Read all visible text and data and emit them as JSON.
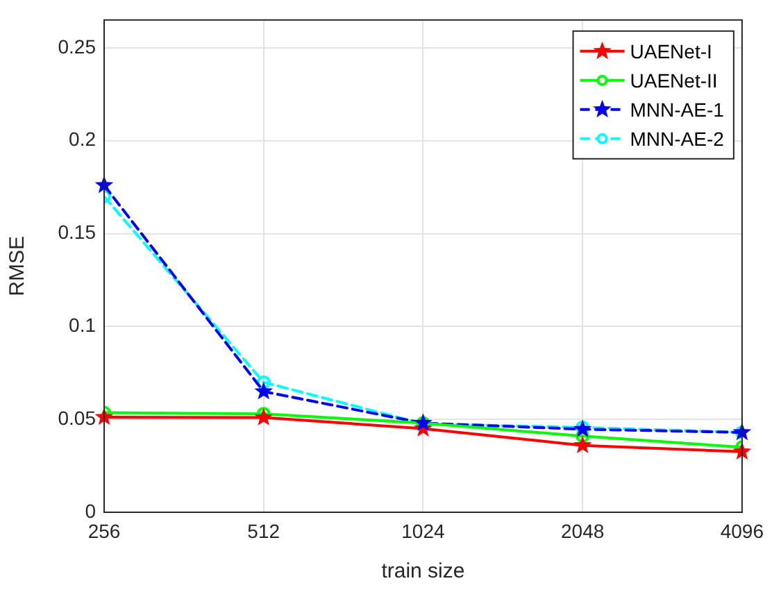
{
  "chart_data": {
    "type": "line",
    "xlabel": "train size",
    "ylabel": "RMSE",
    "log": "x",
    "x": [
      256,
      512,
      1024,
      2048,
      4096
    ],
    "xlim": [
      256,
      4096
    ],
    "xticks": [
      256,
      512,
      1024,
      2048,
      4096
    ],
    "ylim": [
      0,
      0.265
    ],
    "yticks": [
      0,
      0.05,
      0.1,
      0.15,
      0.2,
      0.25
    ],
    "grid": true,
    "legend": "top right",
    "series": [
      {
        "name": "UAENet-I",
        "color": "#ff0000",
        "marker": "star",
        "line_style": "solid",
        "values": [
          0.0512,
          0.051,
          0.045,
          0.036,
          0.0326
        ]
      },
      {
        "name": "UAENet-II",
        "color": "#00ff00",
        "marker": "circle",
        "line_style": "solid",
        "values": [
          0.0536,
          0.053,
          0.048,
          0.041,
          0.035
        ]
      },
      {
        "name": "MNN-AE-1",
        "color": "#0000ff",
        "marker": "star",
        "line_style": "dashed",
        "values": [
          0.176,
          0.065,
          0.048,
          0.0447,
          0.043
        ]
      },
      {
        "name": "MNN-AE-2",
        "color": "#00ffff",
        "marker": "circle",
        "line_style": "dashed",
        "values": [
          0.17,
          0.07,
          0.0476,
          0.0457,
          0.043
        ]
      }
    ]
  }
}
